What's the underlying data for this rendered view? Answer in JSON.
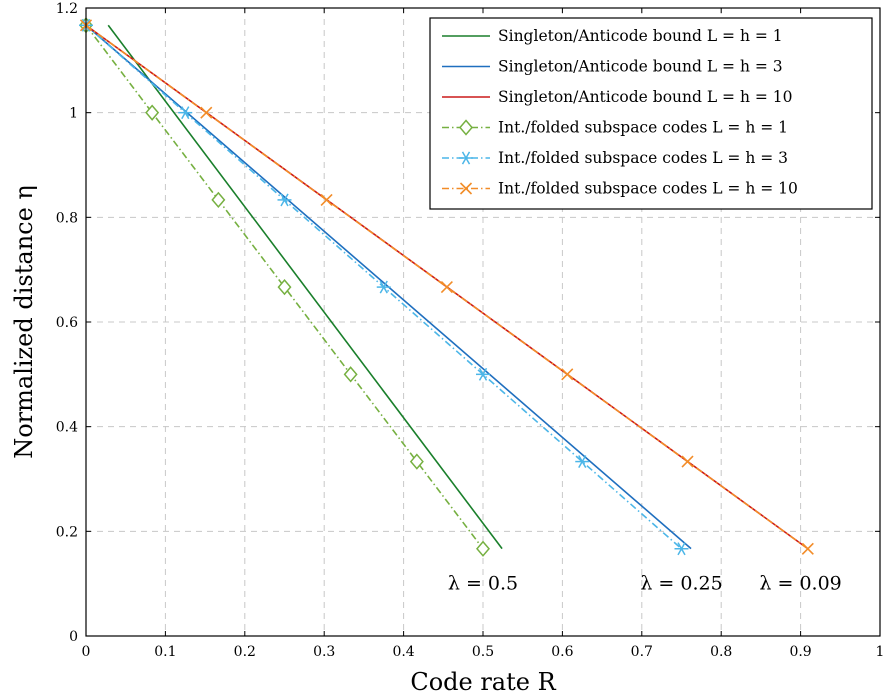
{
  "chart_data": {
    "type": "line",
    "xlabel": "Code rate R",
    "ylabel": "Normalized distance η",
    "xlim": [
      0,
      1
    ],
    "ylim": [
      0,
      1.2
    ],
    "xticks": [
      0,
      0.1,
      0.2,
      0.3,
      0.4,
      0.5,
      0.6,
      0.7,
      0.8,
      0.9,
      1
    ],
    "yticks": [
      0,
      0.2,
      0.4,
      0.6,
      0.8,
      1,
      1.2
    ],
    "grid": true,
    "legend_position": "top-right",
    "series": [
      {
        "name": "Singleton/Anticode bound L = h = 1",
        "style": "solid",
        "marker": "none",
        "color": "#1a7f2b",
        "x": [
          0.028,
          0.524
        ],
        "y": [
          1.167,
          0.167
        ]
      },
      {
        "name": "Singleton/Anticode bound L = h = 3",
        "style": "solid",
        "marker": "none",
        "color": "#1f6fbf",
        "x": [
          0,
          0.762
        ],
        "y": [
          1.167,
          0.167
        ]
      },
      {
        "name": "Singleton/Anticode bound L = h = 10",
        "style": "solid",
        "marker": "none",
        "color": "#cc1a1a",
        "x": [
          0,
          0.909
        ],
        "y": [
          1.167,
          0.167
        ]
      },
      {
        "name": "Int./folded subspace codes L = h = 1",
        "style": "dashdot",
        "marker": "diamond",
        "color": "#76b041",
        "x": [
          0,
          0.0833,
          0.1667,
          0.25,
          0.3333,
          0.4167,
          0.5
        ],
        "y": [
          1.167,
          1.0,
          0.8333,
          0.6667,
          0.5,
          0.3333,
          0.1667
        ]
      },
      {
        "name": "Int./folded subspace codes L = h = 3",
        "style": "dashdot",
        "marker": "asterisk",
        "color": "#4cb6e8",
        "x": [
          0,
          0.125,
          0.25,
          0.375,
          0.5,
          0.625,
          0.75
        ],
        "y": [
          1.167,
          1.0,
          0.8333,
          0.6667,
          0.5,
          0.3333,
          0.1667
        ]
      },
      {
        "name": "Int./folded subspace codes L = h = 10",
        "style": "dashdot",
        "marker": "x",
        "color": "#f28c28",
        "x": [
          0,
          0.1515,
          0.303,
          0.4545,
          0.6061,
          0.7576,
          0.9091
        ],
        "y": [
          1.167,
          1.0,
          0.8333,
          0.6667,
          0.5,
          0.3333,
          0.1667
        ]
      }
    ],
    "annotations": [
      {
        "text": "λ = 0.5",
        "x": 0.5,
        "y": 0.1
      },
      {
        "text": "λ = 0.25",
        "x": 0.75,
        "y": 0.1
      },
      {
        "text": "λ = 0.09",
        "x": 0.9,
        "y": 0.1
      }
    ]
  }
}
